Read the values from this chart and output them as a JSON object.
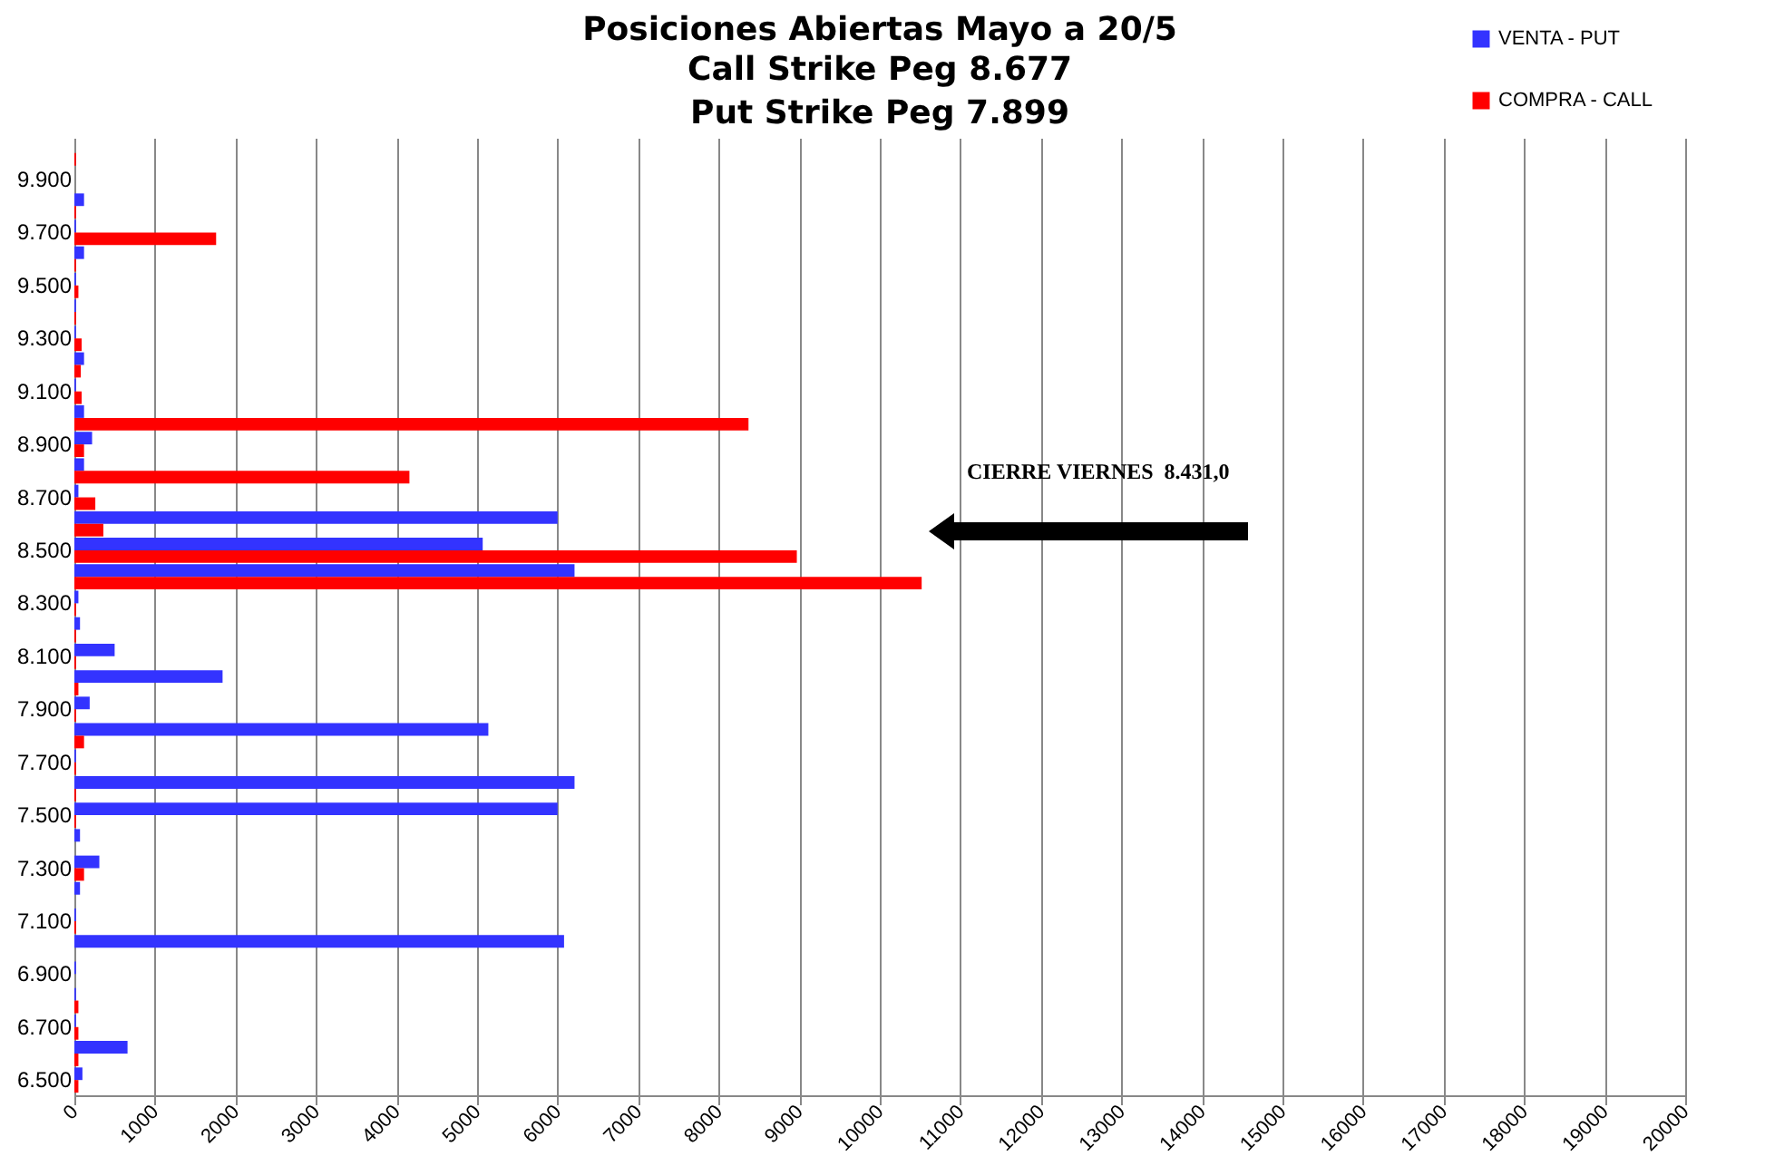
{
  "chart_data": {
    "type": "bar",
    "orientation": "horizontal",
    "title": "Posiciones Abiertas Mayo a 20/5",
    "subtitle": "Call Strike Peg        8.677\nPut Strike Peg         7.899",
    "categories": [
      null,
      "9.900",
      null,
      "9.700",
      null,
      "9.500",
      null,
      "9.300",
      null,
      "9.100",
      null,
      "8.900",
      null,
      "8.700",
      null,
      "8.500",
      null,
      "8.300",
      null,
      "8.100",
      null,
      "7.900",
      null,
      "7.700",
      null,
      "7.500",
      null,
      "7.300",
      null,
      "7.100",
      null,
      "6.900",
      null,
      "6.700",
      null,
      "6.500"
    ],
    "series": [
      {
        "name": "VENTA - PUT",
        "color": "#3333ff",
        "values": [
          0,
          0,
          120,
          20,
          120,
          20,
          20,
          20,
          120,
          20,
          120,
          220,
          120,
          50,
          6000,
          5070,
          6210,
          50,
          70,
          500,
          1840,
          190,
          5140,
          20,
          6210,
          6000,
          70,
          310,
          70,
          20,
          6080,
          20,
          20,
          20,
          660,
          100
        ]
      },
      {
        "name": "COMPRA - CALL",
        "color": "#ff0000",
        "values": [
          20,
          0,
          20,
          1760,
          20,
          50,
          20,
          90,
          80,
          90,
          8370,
          120,
          4160,
          260,
          360,
          8970,
          10520,
          20,
          20,
          20,
          50,
          20,
          120,
          20,
          20,
          20,
          0,
          120,
          0,
          20,
          0,
          0,
          50,
          50,
          50,
          50
        ]
      }
    ],
    "xlim": [
      0,
      20000
    ],
    "xticks": [
      0,
      1000,
      2000,
      3000,
      4000,
      5000,
      6000,
      7000,
      8000,
      9000,
      10000,
      11000,
      12000,
      13000,
      14000,
      15000,
      16000,
      17000,
      18000,
      19000,
      20000
    ],
    "grid": "x",
    "legend": "top right",
    "annotations": [
      "CIERRE VIERNES  8.431,0"
    ]
  }
}
